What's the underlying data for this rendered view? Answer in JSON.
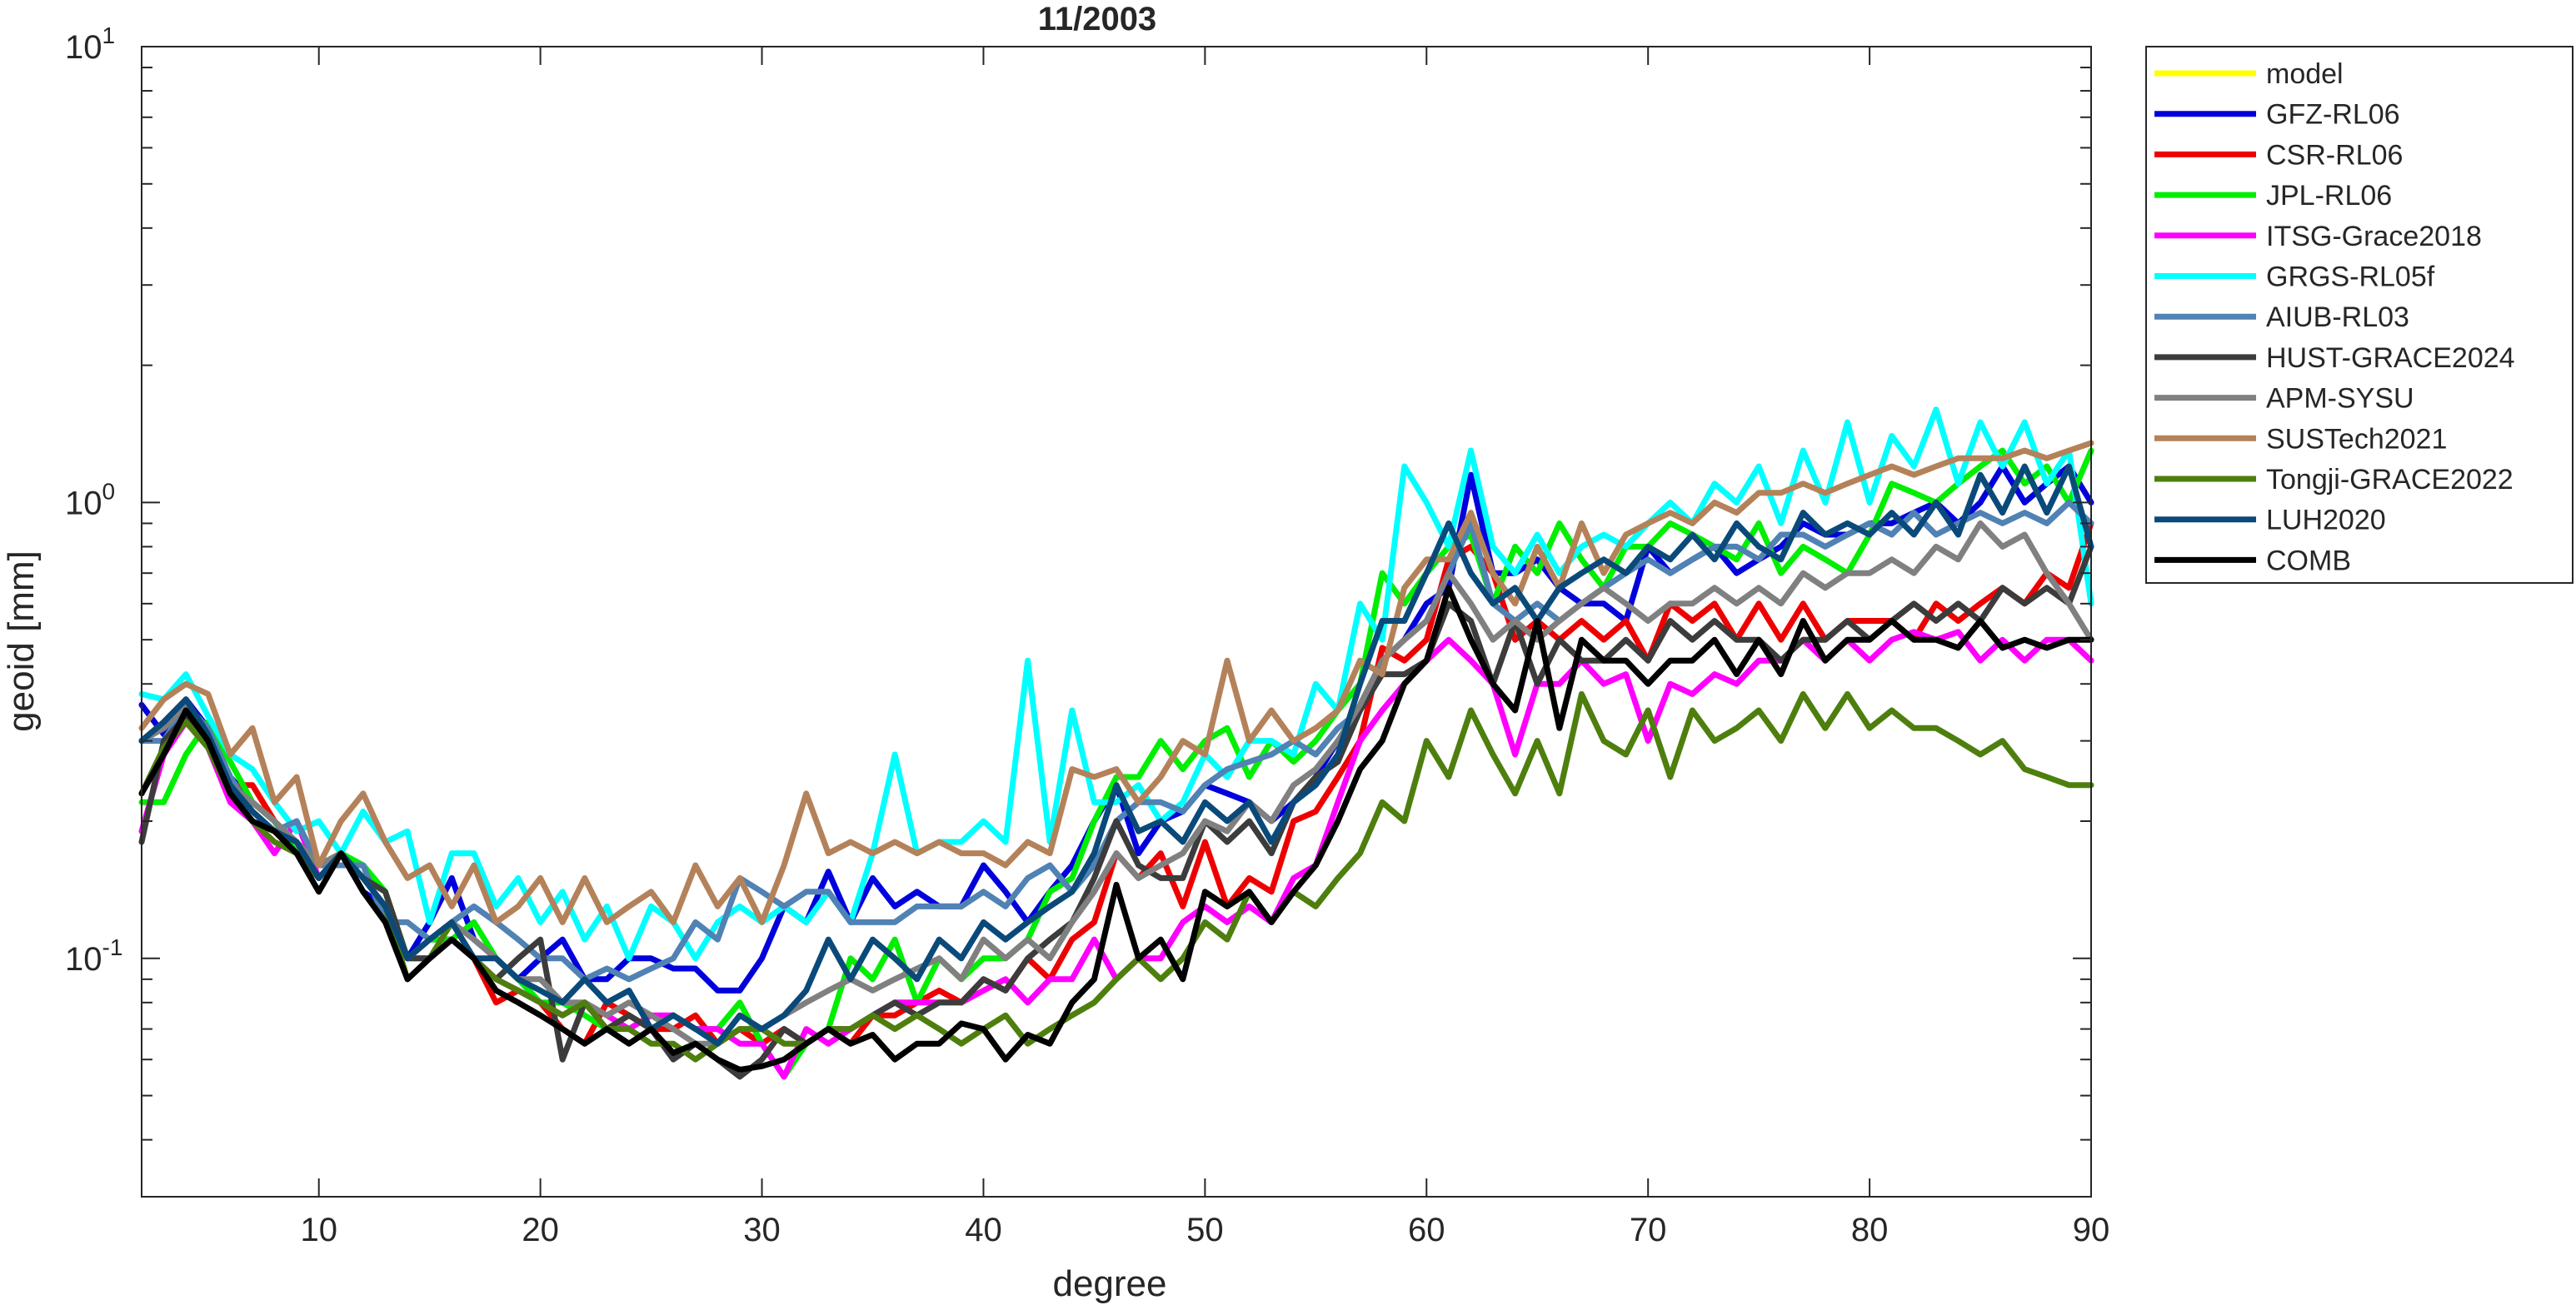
{
  "chart_data": {
    "type": "line",
    "title": "11/2003",
    "xlabel": "degree",
    "ylabel": "geoid [mm]",
    "xlim": [
      2,
      90
    ],
    "ylim": [
      0.03,
      10
    ],
    "yscale": "log",
    "grid": false,
    "legend_position": "outside-top-right",
    "x_ticks": [
      10,
      20,
      30,
      40,
      50,
      60,
      70,
      80,
      90
    ],
    "x_tick_labels": [
      "10",
      "20",
      "30",
      "40",
      "50",
      "60",
      "70",
      "80",
      "90"
    ],
    "y_ticks": [
      0.1,
      1,
      10
    ],
    "y_tick_labels": [
      {
        "base": "10",
        "exp": "-1"
      },
      {
        "base": "10",
        "exp": "0"
      },
      {
        "base": "10",
        "exp": "1"
      }
    ],
    "series": [
      {
        "name": "model",
        "color": "#ffff00",
        "x_start": 2,
        "values": []
      },
      {
        "name": "GFZ-RL06",
        "color": "#0000dd",
        "x_start": 2,
        "values": [
          0.36,
          0.31,
          0.37,
          0.32,
          0.25,
          0.22,
          0.2,
          0.17,
          0.16,
          0.17,
          0.14,
          0.13,
          0.1,
          0.12,
          0.15,
          0.11,
          0.1,
          0.09,
          0.1,
          0.11,
          0.09,
          0.09,
          0.1,
          0.1,
          0.095,
          0.095,
          0.085,
          0.085,
          0.1,
          0.13,
          0.12,
          0.155,
          0.12,
          0.15,
          0.13,
          0.14,
          0.13,
          0.13,
          0.16,
          0.14,
          0.12,
          0.14,
          0.16,
          0.2,
          0.24,
          0.17,
          0.2,
          0.21,
          0.24,
          0.23,
          0.22,
          0.2,
          0.22,
          0.25,
          0.3,
          0.35,
          0.45,
          0.5,
          0.6,
          0.65,
          1.15,
          0.7,
          0.7,
          0.75,
          0.65,
          0.6,
          0.6,
          0.55,
          0.8,
          0.7,
          0.75,
          0.8,
          0.7,
          0.75,
          0.8,
          0.9,
          0.85,
          0.85,
          0.9,
          0.9,
          0.95,
          1.0,
          0.9,
          1.0,
          1.2,
          1.0,
          1.1,
          1.2,
          1.0
        ]
      },
      {
        "name": "CSR-RL06",
        "color": "#ee0000",
        "x_start": 2,
        "values": [
          0.3,
          0.33,
          0.37,
          0.3,
          0.24,
          0.24,
          0.2,
          0.17,
          0.15,
          0.17,
          0.15,
          0.13,
          0.1,
          0.11,
          0.11,
          0.1,
          0.08,
          0.085,
          0.08,
          0.07,
          0.065,
          0.08,
          0.075,
          0.07,
          0.07,
          0.075,
          0.065,
          0.07,
          0.065,
          0.07,
          0.065,
          0.07,
          0.065,
          0.075,
          0.075,
          0.08,
          0.085,
          0.08,
          0.09,
          0.085,
          0.1,
          0.09,
          0.11,
          0.12,
          0.17,
          0.15,
          0.17,
          0.13,
          0.18,
          0.13,
          0.15,
          0.14,
          0.2,
          0.21,
          0.25,
          0.3,
          0.48,
          0.45,
          0.5,
          0.75,
          0.8,
          0.7,
          0.5,
          0.55,
          0.5,
          0.55,
          0.5,
          0.55,
          0.45,
          0.6,
          0.55,
          0.6,
          0.5,
          0.6,
          0.5,
          0.6,
          0.5,
          0.55,
          0.55,
          0.55,
          0.5,
          0.6,
          0.55,
          0.6,
          0.65,
          0.6,
          0.7,
          0.65,
          0.9
        ]
      },
      {
        "name": "JPL-RL06",
        "color": "#00ee00",
        "x_start": 2,
        "values": [
          0.22,
          0.22,
          0.28,
          0.33,
          0.27,
          0.22,
          0.2,
          0.17,
          0.16,
          0.17,
          0.16,
          0.14,
          0.1,
          0.11,
          0.11,
          0.12,
          0.1,
          0.09,
          0.08,
          0.08,
          0.075,
          0.07,
          0.075,
          0.07,
          0.075,
          0.07,
          0.07,
          0.08,
          0.065,
          0.055,
          0.065,
          0.07,
          0.1,
          0.09,
          0.11,
          0.08,
          0.1,
          0.09,
          0.1,
          0.1,
          0.11,
          0.14,
          0.15,
          0.2,
          0.25,
          0.25,
          0.3,
          0.26,
          0.3,
          0.32,
          0.25,
          0.3,
          0.27,
          0.3,
          0.35,
          0.4,
          0.7,
          0.6,
          0.7,
          0.8,
          0.85,
          0.6,
          0.8,
          0.7,
          0.9,
          0.75,
          0.65,
          0.8,
          0.8,
          0.9,
          0.85,
          0.8,
          0.75,
          0.9,
          0.7,
          0.8,
          0.75,
          0.7,
          0.85,
          1.1,
          1.05,
          1.0,
          1.1,
          1.2,
          1.3,
          1.1,
          1.2,
          1.0,
          1.3
        ]
      },
      {
        "name": "ITSG-Grace2018",
        "color": "#ff00ff",
        "x_start": 2,
        "values": [
          0.19,
          0.28,
          0.33,
          0.29,
          0.22,
          0.2,
          0.17,
          0.2,
          0.15,
          0.17,
          0.15,
          0.13,
          0.1,
          0.1,
          0.11,
          0.1,
          0.09,
          0.085,
          0.08,
          0.075,
          0.08,
          0.075,
          0.07,
          0.075,
          0.075,
          0.07,
          0.07,
          0.065,
          0.065,
          0.055,
          0.07,
          0.065,
          0.07,
          0.075,
          0.08,
          0.08,
          0.08,
          0.08,
          0.085,
          0.09,
          0.08,
          0.09,
          0.09,
          0.11,
          0.09,
          0.1,
          0.1,
          0.12,
          0.13,
          0.12,
          0.13,
          0.12,
          0.15,
          0.16,
          0.22,
          0.3,
          0.35,
          0.4,
          0.45,
          0.5,
          0.45,
          0.4,
          0.28,
          0.4,
          0.4,
          0.45,
          0.4,
          0.42,
          0.3,
          0.4,
          0.38,
          0.42,
          0.4,
          0.45,
          0.45,
          0.5,
          0.45,
          0.5,
          0.45,
          0.5,
          0.52,
          0.5,
          0.52,
          0.45,
          0.5,
          0.45,
          0.5,
          0.5,
          0.45
        ]
      },
      {
        "name": "GRGS-RL05f",
        "color": "#00ffff",
        "x_start": 2,
        "values": [
          0.38,
          0.37,
          0.42,
          0.34,
          0.28,
          0.26,
          0.22,
          0.19,
          0.2,
          0.17,
          0.21,
          0.18,
          0.19,
          0.12,
          0.17,
          0.17,
          0.13,
          0.15,
          0.12,
          0.14,
          0.11,
          0.13,
          0.1,
          0.13,
          0.12,
          0.1,
          0.12,
          0.13,
          0.12,
          0.13,
          0.12,
          0.14,
          0.12,
          0.17,
          0.28,
          0.17,
          0.18,
          0.18,
          0.2,
          0.18,
          0.45,
          0.18,
          0.35,
          0.22,
          0.22,
          0.24,
          0.2,
          0.22,
          0.28,
          0.25,
          0.3,
          0.3,
          0.28,
          0.4,
          0.35,
          0.6,
          0.5,
          1.2,
          1.0,
          0.8,
          1.3,
          0.8,
          0.7,
          0.85,
          0.7,
          0.8,
          0.85,
          0.8,
          0.9,
          1.0,
          0.9,
          1.1,
          1.0,
          1.2,
          0.9,
          1.3,
          1.0,
          1.5,
          1.0,
          1.4,
          1.2,
          1.6,
          1.1,
          1.5,
          1.2,
          1.5,
          1.1,
          1.3,
          0.6
        ]
      },
      {
        "name": "AIUB-RL03",
        "color": "#5082b4",
        "x_start": 2,
        "values": [
          0.3,
          0.3,
          0.36,
          0.32,
          0.25,
          0.21,
          0.19,
          0.2,
          0.16,
          0.16,
          0.16,
          0.12,
          0.12,
          0.11,
          0.12,
          0.13,
          0.12,
          0.11,
          0.1,
          0.1,
          0.09,
          0.095,
          0.09,
          0.095,
          0.1,
          0.12,
          0.11,
          0.15,
          0.14,
          0.13,
          0.14,
          0.14,
          0.12,
          0.12,
          0.12,
          0.13,
          0.13,
          0.13,
          0.14,
          0.13,
          0.15,
          0.16,
          0.14,
          0.16,
          0.2,
          0.22,
          0.22,
          0.21,
          0.24,
          0.26,
          0.27,
          0.28,
          0.3,
          0.28,
          0.32,
          0.35,
          0.45,
          0.5,
          0.55,
          0.7,
          0.9,
          0.6,
          0.55,
          0.6,
          0.55,
          0.6,
          0.65,
          0.7,
          0.75,
          0.7,
          0.75,
          0.8,
          0.8,
          0.75,
          0.85,
          0.85,
          0.8,
          0.85,
          0.9,
          0.85,
          0.95,
          0.85,
          0.9,
          0.95,
          0.9,
          0.95,
          0.9,
          1.0,
          0.9
        ]
      },
      {
        "name": "HUST-GRACE2024",
        "color": "#3c3c3c",
        "x_start": 2,
        "values": [
          0.18,
          0.3,
          0.34,
          0.3,
          0.23,
          0.2,
          0.19,
          0.18,
          0.15,
          0.17,
          0.15,
          0.14,
          0.1,
          0.1,
          0.11,
          0.1,
          0.09,
          0.1,
          0.11,
          0.06,
          0.08,
          0.07,
          0.075,
          0.07,
          0.06,
          0.065,
          0.06,
          0.055,
          0.06,
          0.07,
          0.065,
          0.07,
          0.07,
          0.075,
          0.08,
          0.075,
          0.08,
          0.08,
          0.09,
          0.085,
          0.1,
          0.11,
          0.12,
          0.15,
          0.2,
          0.16,
          0.15,
          0.15,
          0.2,
          0.18,
          0.2,
          0.17,
          0.22,
          0.25,
          0.27,
          0.35,
          0.42,
          0.42,
          0.45,
          0.6,
          0.55,
          0.4,
          0.55,
          0.4,
          0.5,
          0.45,
          0.45,
          0.5,
          0.45,
          0.55,
          0.5,
          0.55,
          0.5,
          0.5,
          0.45,
          0.5,
          0.5,
          0.55,
          0.5,
          0.55,
          0.6,
          0.55,
          0.6,
          0.55,
          0.65,
          0.6,
          0.65,
          0.6,
          0.8
        ]
      },
      {
        "name": "APM-SYSU",
        "color": "#808080",
        "x_start": 2,
        "values": [
          0.3,
          0.32,
          0.36,
          0.3,
          0.24,
          0.22,
          0.2,
          0.18,
          0.16,
          0.17,
          0.15,
          0.13,
          0.1,
          0.11,
          0.12,
          0.11,
          0.1,
          0.09,
          0.09,
          0.08,
          0.08,
          0.075,
          0.08,
          0.075,
          0.07,
          0.065,
          0.065,
          0.07,
          0.07,
          0.075,
          0.08,
          0.085,
          0.09,
          0.085,
          0.09,
          0.095,
          0.1,
          0.09,
          0.11,
          0.1,
          0.11,
          0.1,
          0.12,
          0.14,
          0.17,
          0.15,
          0.16,
          0.17,
          0.2,
          0.19,
          0.22,
          0.2,
          0.24,
          0.26,
          0.3,
          0.36,
          0.45,
          0.5,
          0.55,
          0.7,
          0.6,
          0.5,
          0.55,
          0.5,
          0.55,
          0.6,
          0.65,
          0.6,
          0.55,
          0.6,
          0.6,
          0.65,
          0.6,
          0.65,
          0.6,
          0.7,
          0.65,
          0.7,
          0.7,
          0.75,
          0.7,
          0.8,
          0.75,
          0.9,
          0.8,
          0.85,
          0.7,
          0.6,
          0.5
        ]
      },
      {
        "name": "SUSTech2021",
        "color": "#b4825a",
        "x_start": 2,
        "values": [
          0.32,
          0.37,
          0.4,
          0.38,
          0.28,
          0.32,
          0.22,
          0.25,
          0.16,
          0.2,
          0.23,
          0.18,
          0.15,
          0.16,
          0.13,
          0.16,
          0.12,
          0.13,
          0.15,
          0.12,
          0.15,
          0.12,
          0.13,
          0.14,
          0.12,
          0.16,
          0.13,
          0.15,
          0.12,
          0.16,
          0.23,
          0.17,
          0.18,
          0.17,
          0.18,
          0.17,
          0.18,
          0.17,
          0.17,
          0.16,
          0.18,
          0.17,
          0.26,
          0.25,
          0.26,
          0.22,
          0.25,
          0.3,
          0.28,
          0.45,
          0.3,
          0.35,
          0.3,
          0.32,
          0.35,
          0.45,
          0.42,
          0.65,
          0.75,
          0.75,
          0.95,
          0.7,
          0.6,
          0.8,
          0.65,
          0.9,
          0.7,
          0.85,
          0.9,
          0.95,
          0.9,
          1.0,
          0.95,
          1.05,
          1.05,
          1.1,
          1.05,
          1.1,
          1.15,
          1.2,
          1.15,
          1.2,
          1.25,
          1.25,
          1.25,
          1.3,
          1.25,
          1.3,
          1.35
        ]
      },
      {
        "name": "Tongji-GRACE2022",
        "color": "#4e7f0e",
        "x_start": 2,
        "values": [
          0.23,
          0.29,
          0.33,
          0.29,
          0.23,
          0.2,
          0.18,
          0.17,
          0.15,
          0.17,
          0.15,
          0.13,
          0.09,
          0.1,
          0.12,
          0.1,
          0.09,
          0.085,
          0.08,
          0.075,
          0.08,
          0.07,
          0.07,
          0.065,
          0.065,
          0.06,
          0.065,
          0.07,
          0.07,
          0.065,
          0.065,
          0.07,
          0.07,
          0.075,
          0.07,
          0.075,
          0.07,
          0.065,
          0.07,
          0.075,
          0.065,
          0.07,
          0.075,
          0.08,
          0.09,
          0.1,
          0.09,
          0.1,
          0.12,
          0.11,
          0.14,
          0.12,
          0.14,
          0.13,
          0.15,
          0.17,
          0.22,
          0.2,
          0.3,
          0.25,
          0.35,
          0.28,
          0.23,
          0.3,
          0.23,
          0.38,
          0.3,
          0.28,
          0.35,
          0.25,
          0.35,
          0.3,
          0.32,
          0.35,
          0.3,
          0.38,
          0.32,
          0.38,
          0.32,
          0.35,
          0.32,
          0.32,
          0.3,
          0.28,
          0.3,
          0.26,
          0.25,
          0.24,
          0.24
        ]
      },
      {
        "name": "LUH2020",
        "color": "#0a4a7a",
        "x_start": 2,
        "values": [
          0.3,
          0.33,
          0.37,
          0.31,
          0.24,
          0.21,
          0.19,
          0.18,
          0.15,
          0.17,
          0.15,
          0.13,
          0.1,
          0.11,
          0.12,
          0.1,
          0.1,
          0.09,
          0.085,
          0.08,
          0.09,
          0.08,
          0.085,
          0.07,
          0.075,
          0.07,
          0.065,
          0.075,
          0.07,
          0.075,
          0.085,
          0.11,
          0.09,
          0.11,
          0.1,
          0.09,
          0.11,
          0.1,
          0.12,
          0.11,
          0.12,
          0.13,
          0.14,
          0.17,
          0.24,
          0.19,
          0.2,
          0.18,
          0.22,
          0.2,
          0.22,
          0.18,
          0.22,
          0.24,
          0.28,
          0.4,
          0.55,
          0.55,
          0.7,
          0.9,
          0.7,
          0.6,
          0.65,
          0.55,
          0.65,
          0.7,
          0.75,
          0.7,
          0.8,
          0.75,
          0.85,
          0.75,
          0.9,
          0.8,
          0.75,
          0.95,
          0.85,
          0.9,
          0.85,
          0.95,
          0.85,
          1.0,
          0.85,
          1.15,
          0.95,
          1.2,
          0.95,
          1.2,
          0.8
        ]
      },
      {
        "name": "COMB",
        "color": "#000000",
        "x_start": 2,
        "values": [
          0.23,
          0.28,
          0.35,
          0.3,
          0.23,
          0.2,
          0.19,
          0.17,
          0.14,
          0.17,
          0.14,
          0.12,
          0.09,
          0.1,
          0.11,
          0.1,
          0.085,
          0.08,
          0.075,
          0.07,
          0.065,
          0.07,
          0.065,
          0.07,
          0.062,
          0.065,
          0.06,
          0.057,
          0.058,
          0.06,
          0.065,
          0.07,
          0.065,
          0.068,
          0.06,
          0.065,
          0.065,
          0.072,
          0.07,
          0.06,
          0.068,
          0.065,
          0.08,
          0.09,
          0.145,
          0.1,
          0.11,
          0.09,
          0.14,
          0.13,
          0.14,
          0.12,
          0.14,
          0.16,
          0.2,
          0.26,
          0.3,
          0.4,
          0.45,
          0.65,
          0.5,
          0.4,
          0.35,
          0.55,
          0.32,
          0.5,
          0.45,
          0.45,
          0.4,
          0.45,
          0.45,
          0.5,
          0.42,
          0.5,
          0.42,
          0.55,
          0.45,
          0.5,
          0.5,
          0.55,
          0.5,
          0.5,
          0.48,
          0.55,
          0.48,
          0.5,
          0.48,
          0.5,
          0.5
        ]
      }
    ]
  }
}
